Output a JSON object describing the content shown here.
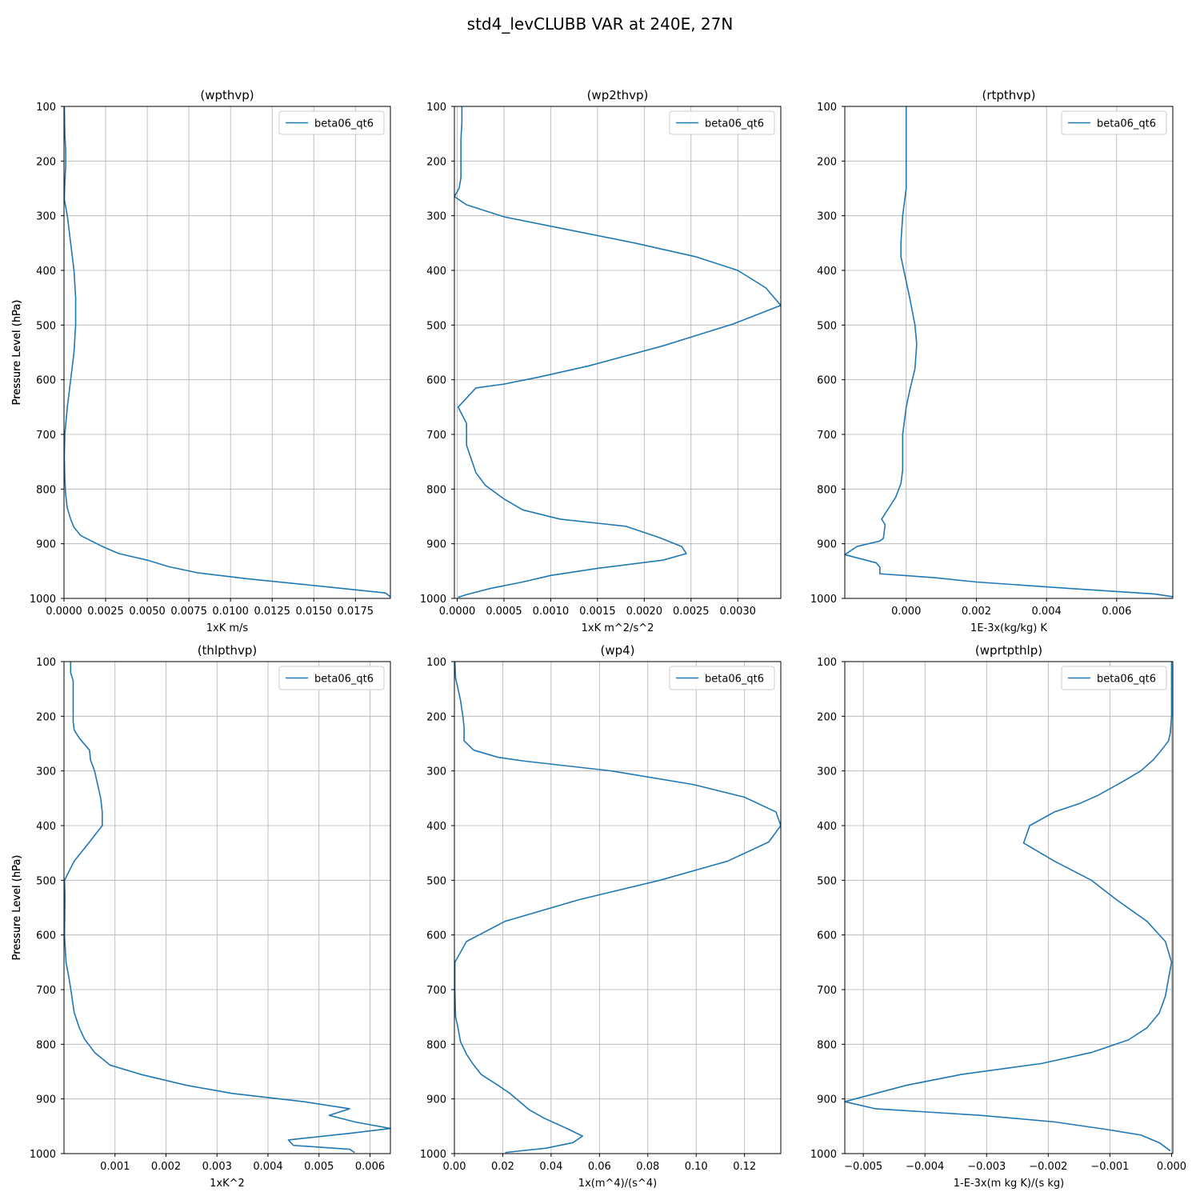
{
  "figure": {
    "suptitle": "std4_levCLUBB VAR at 240E, 27N"
  },
  "legend_position": "upper right",
  "grid": true,
  "line_color": "#1f77b4",
  "chart_data": [
    {
      "type": "line",
      "title": "(wpthvp)",
      "xlabel": "1xK m/s",
      "ylabel": "Pressure Level (hPa)",
      "xlim": [
        0,
        0.0196
      ],
      "ylim": [
        1000,
        100
      ],
      "xticks": [
        "0.0000",
        "0.0025",
        "0.0050",
        "0.0075",
        "0.0100",
        "0.0125",
        "0.0150",
        "0.0175"
      ],
      "xtick_values": [
        0,
        0.0025,
        0.005,
        0.0075,
        0.01,
        0.0125,
        0.015,
        0.0175
      ],
      "yticks": [
        "100",
        "200",
        "300",
        "400",
        "500",
        "600",
        "700",
        "800",
        "900",
        "1000"
      ],
      "series": [
        {
          "name": "beta06_qt6",
          "x": [
            2e-05,
            5e-05,
            0.0001,
            0.0001,
            5e-05,
            2e-05,
            0.0002,
            0.0004,
            0.0006,
            0.0007,
            0.0007,
            0.0006,
            0.0004,
            0.0002,
            5e-05,
            2e-05,
            5e-05,
            0.0001,
            0.0002,
            0.0004,
            0.0006,
            0.001,
            0.0023,
            0.0033,
            0.005,
            0.0063,
            0.008,
            0.011,
            0.0155,
            0.0193,
            0.0196
          ],
          "y": [
            100,
            150,
            180,
            210,
            240,
            270,
            300,
            350,
            400,
            450,
            500,
            550,
            600,
            650,
            700,
            740,
            780,
            810,
            835,
            855,
            870,
            885,
            905,
            918,
            930,
            942,
            953,
            964,
            978,
            990,
            997
          ]
        }
      ]
    },
    {
      "type": "line",
      "title": "(wp2thvp)",
      "xlabel": "1xK m^2/s^2",
      "ylabel": "Pressure Level (hPa)",
      "xlim": [
        -3e-05,
        0.00346
      ],
      "ylim": [
        1000,
        100
      ],
      "xticks": [
        "0.0000",
        "0.0005",
        "0.0010",
        "0.0015",
        "0.0020",
        "0.0025",
        "0.0030"
      ],
      "xtick_values": [
        0,
        0.0005,
        0.001,
        0.0015,
        0.002,
        0.0025,
        0.003
      ],
      "yticks": [
        "100",
        "200",
        "300",
        "400",
        "500",
        "600",
        "700",
        "800",
        "900",
        "1000"
      ],
      "series": [
        {
          "name": "beta06_qt6",
          "x": [
            5e-05,
            5e-05,
            4e-05,
            4e-05,
            4e-05,
            4e-05,
            2e-05,
            -3e-05,
            0.0001,
            0.0005,
            0.0012,
            0.0019,
            0.00255,
            0.003,
            0.0033,
            0.00346,
            0.00295,
            0.0022,
            0.0014,
            0.00085,
            0.0005,
            0.0002,
            1e-05,
            0.0001,
            0.0001,
            0.00015,
            0.0002,
            0.0003,
            0.0005,
            0.0007,
            0.0011,
            0.0018,
            0.00215,
            0.0024,
            0.00245,
            0.0022,
            0.0015,
            0.001,
            0.0007,
            0.00035,
            0.0001,
            1e-05
          ],
          "y": [
            100,
            130,
            160,
            190,
            210,
            230,
            250,
            265,
            280,
            302,
            326,
            350,
            375,
            400,
            432,
            464,
            498,
            538,
            575,
            596,
            608,
            615,
            650,
            680,
            720,
            745,
            770,
            793,
            818,
            838,
            855,
            868,
            888,
            905,
            918,
            930,
            945,
            958,
            970,
            982,
            993,
            998
          ]
        }
      ]
    },
    {
      "type": "line",
      "title": "(rtpthvp)",
      "xlabel": "1E-3x(kg/kg) K",
      "ylabel": "Pressure Level (hPa)",
      "xlim": [
        -0.00175,
        0.0076
      ],
      "ylim": [
        1000,
        100
      ],
      "xticks": [
        "0.000",
        "0.002",
        "0.004",
        "0.006"
      ],
      "xtick_values": [
        0,
        0.002,
        0.004,
        0.006
      ],
      "yticks": [
        "100",
        "200",
        "300",
        "400",
        "500",
        "600",
        "700",
        "800",
        "900",
        "1000"
      ],
      "series": [
        {
          "name": "beta06_qt6",
          "x": [
            0,
            0,
            0,
            0,
            -0.0001,
            -0.00015,
            -0.00015,
            0.0001,
            0.00025,
            0.0003,
            0.00025,
            0.0001,
            0,
            -0.0001,
            -0.0001,
            -0.00015,
            -0.0003,
            -0.0005,
            -0.0007,
            -0.0006,
            -0.00065,
            -0.00075,
            -0.0014,
            -0.00175,
            -0.00085,
            -0.00075,
            -0.00075,
            0.0008,
            0.002,
            0.0047,
            0.0071,
            0.0076
          ],
          "y": [
            100,
            150,
            200,
            250,
            300,
            350,
            375,
            450,
            500,
            535,
            580,
            620,
            650,
            700,
            765,
            790,
            815,
            835,
            855,
            865,
            890,
            895,
            905,
            920,
            935,
            943,
            955,
            962,
            970,
            982,
            992,
            997
          ]
        }
      ]
    },
    {
      "type": "line",
      "title": "(thlpthvp)",
      "xlabel": "1xK^2",
      "ylabel": "Pressure Level (hPa)",
      "xlim": [
        0,
        0.0064
      ],
      "ylim": [
        1000,
        100
      ],
      "xticks": [
        "0.001",
        "0.002",
        "0.003",
        "0.004",
        "0.005",
        "0.006"
      ],
      "xtick_values": [
        0.001,
        0.002,
        0.003,
        0.004,
        0.005,
        0.006
      ],
      "yticks": [
        "100",
        "200",
        "300",
        "400",
        "500",
        "600",
        "700",
        "800",
        "900",
        "1000"
      ],
      "series": [
        {
          "name": "beta06_qt6",
          "x": [
            0.00013,
            0.00013,
            0.00018,
            0.00018,
            0.00018,
            0.00018,
            0.0002,
            0.0003,
            0.0005,
            0.00052,
            0.0006,
            0.00072,
            0.00075,
            0.00075,
            0.0005,
            0.0002,
            1e-05,
            2e-05,
            1e-05,
            4e-05,
            0.0001,
            0.00015,
            0.0002,
            0.0003,
            0.0004,
            0.0006,
            0.0009,
            0.0015,
            0.0024,
            0.0033,
            0.0047,
            0.0056,
            0.0052,
            0.0057,
            0.0064,
            0.0056,
            0.0044,
            0.0045,
            0.0056,
            0.0057
          ],
          "y": [
            100,
            120,
            135,
            150,
            170,
            210,
            225,
            240,
            262,
            280,
            300,
            350,
            375,
            400,
            430,
            465,
            500,
            530,
            600,
            650,
            680,
            710,
            742,
            770,
            790,
            815,
            838,
            855,
            875,
            890,
            905,
            918,
            930,
            942,
            954,
            963,
            975,
            985,
            992,
            998
          ]
        }
      ]
    },
    {
      "type": "line",
      "title": "(wp4)",
      "xlabel": "1x(m^4)/(s^4)",
      "ylabel": "Pressure Level (hPa)",
      "xlim": [
        0,
        0.135
      ],
      "ylim": [
        1000,
        100
      ],
      "xticks": [
        "0.00",
        "0.02",
        "0.04",
        "0.06",
        "0.08",
        "0.10",
        "0.12"
      ],
      "xtick_values": [
        0,
        0.02,
        0.04,
        0.06,
        0.08,
        0.1,
        0.12
      ],
      "yticks": [
        "100",
        "200",
        "300",
        "400",
        "500",
        "600",
        "700",
        "800",
        "900",
        "1000"
      ],
      "series": [
        {
          "name": "beta06_qt6",
          "x": [
            0.0002,
            0.0005,
            0.0015,
            0.0025,
            0.0035,
            0.004,
            0.004,
            0.008,
            0.018,
            0.029,
            0.065,
            0.099,
            0.12,
            0.133,
            0.135,
            0.13,
            0.113,
            0.085,
            0.052,
            0.021,
            0.005,
            0.0002,
            0.0002,
            0.0005,
            0.0015,
            0.0025,
            0.005,
            0.0075,
            0.011,
            0.018,
            0.023,
            0.027,
            0.031,
            0.037,
            0.047,
            0.053,
            0.049,
            0.038,
            0.021
          ],
          "y": [
            100,
            130,
            150,
            170,
            200,
            220,
            245,
            262,
            275,
            282,
            300,
            325,
            348,
            375,
            400,
            430,
            465,
            500,
            535,
            575,
            612,
            650,
            700,
            750,
            770,
            795,
            818,
            835,
            855,
            875,
            890,
            905,
            920,
            935,
            955,
            968,
            980,
            990,
            998
          ]
        }
      ]
    },
    {
      "type": "line",
      "title": "(wprtpthlp)",
      "xlabel": "1-E-3x(m kg K)/(s kg)",
      "ylabel": "Pressure Level (hPa)",
      "xlim": [
        -0.0053,
        2e-05
      ],
      "ylim": [
        1000,
        100
      ],
      "xticks": [
        "−0.005",
        "−0.004",
        "−0.003",
        "−0.002",
        "−0.001",
        "0.000"
      ],
      "xtick_values": [
        -0.005,
        -0.004,
        -0.003,
        -0.002,
        -0.001,
        0
      ],
      "yticks": [
        "100",
        "200",
        "300",
        "400",
        "500",
        "600",
        "700",
        "800",
        "900",
        "1000"
      ],
      "series": [
        {
          "name": "beta06_qt6",
          "x": [
            0,
            0,
            0,
            -2e-05,
            -5e-05,
            -0.00015,
            -0.0003,
            -0.0005,
            -0.0008,
            -0.0012,
            -0.0015,
            -0.0019,
            -0.0023,
            -0.0024,
            -0.0019,
            -0.0013,
            -0.0009,
            -0.0004,
            -0.0001,
            0,
            -5e-05,
            -0.0001,
            -0.0002,
            -0.0004,
            -0.0007,
            -0.0013,
            -0.0021,
            -0.0034,
            -0.0043,
            -0.0048,
            -0.0053,
            -0.0048,
            -0.0031,
            -0.0019,
            -0.0011,
            -0.0005,
            -0.0002,
            -2e-05
          ],
          "y": [
            100,
            150,
            200,
            230,
            245,
            260,
            280,
            300,
            320,
            345,
            360,
            375,
            400,
            432,
            465,
            500,
            535,
            575,
            612,
            650,
            680,
            712,
            743,
            770,
            792,
            815,
            835,
            855,
            875,
            890,
            905,
            918,
            930,
            942,
            955,
            966,
            980,
            995
          ]
        }
      ]
    }
  ]
}
